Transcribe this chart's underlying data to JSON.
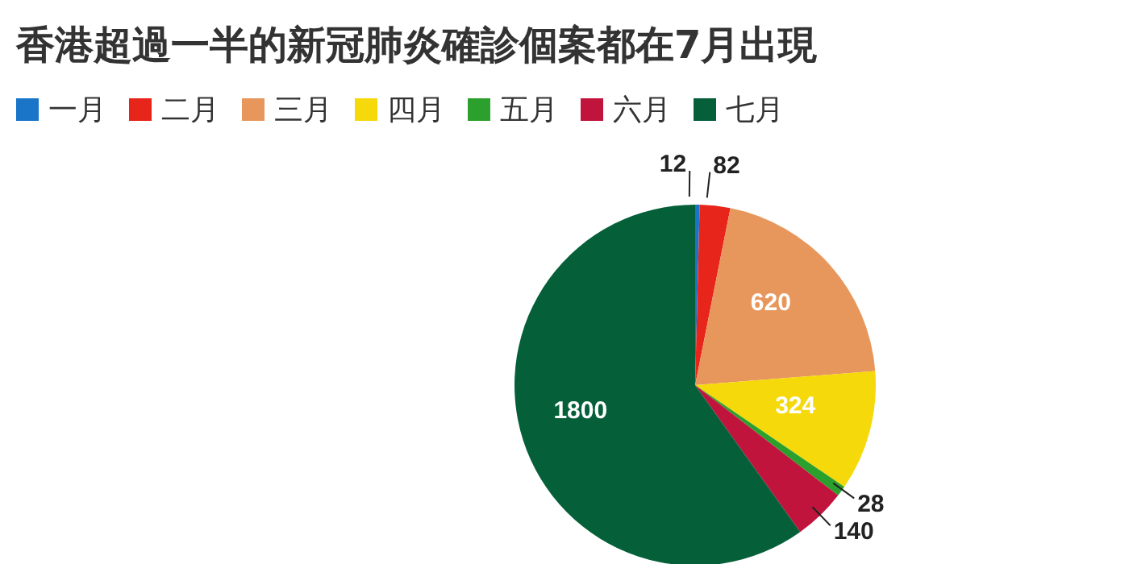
{
  "chart_data": {
    "type": "pie",
    "title": "香港超過一半的新冠肺炎確診個案都在7月出現",
    "categories": [
      "一月",
      "二月",
      "三月",
      "四月",
      "五月",
      "六月",
      "七月"
    ],
    "values": [
      12,
      82,
      620,
      324,
      28,
      140,
      1800
    ],
    "colors": [
      "#1a75c9",
      "#e8251a",
      "#e8975c",
      "#f5d90a",
      "#2ca02c",
      "#c0143c",
      "#05603a"
    ],
    "data_labels": true,
    "legend": "top left"
  }
}
